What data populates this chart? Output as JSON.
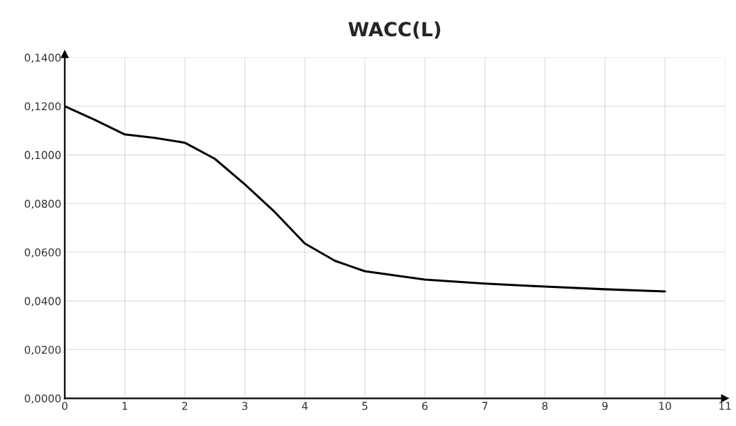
{
  "chart_data": {
    "type": "line",
    "title": "WACC(L)",
    "x": [
      0,
      0.5,
      1,
      1.5,
      2,
      2.5,
      3,
      3.5,
      4,
      4.5,
      5,
      6,
      7,
      8,
      9,
      10
    ],
    "series": [
      {
        "color": "#000000",
        "values": [
          0.12,
          0.1144,
          0.1084,
          0.107,
          0.105,
          0.0984,
          0.0879,
          0.0765,
          0.0636,
          0.0565,
          0.0522,
          0.0488,
          0.0471,
          0.0459,
          0.0448,
          0.0439
        ]
      }
    ],
    "xlim": [
      0,
      11
    ],
    "xticks": [
      0,
      1,
      2,
      3,
      4,
      5,
      6,
      7,
      8,
      9,
      10,
      11
    ],
    "ylim": [
      0,
      0.14
    ],
    "yticks": [
      {
        "value": 0,
        "label": "0,0000"
      },
      {
        "value": 0.02,
        "label": "0,0200"
      },
      {
        "value": 0.04,
        "label": "0,0400"
      },
      {
        "value": 0.06,
        "label": "0,0600"
      },
      {
        "value": 0.08,
        "label": "0,0800"
      },
      {
        "value": 0.1,
        "label": "0,1000"
      },
      {
        "value": 0.12,
        "label": "0,1200"
      },
      {
        "value": 0.14,
        "label": "0,1400"
      }
    ],
    "grid": true,
    "legend": false,
    "marker": "none",
    "line_style": "solid"
  }
}
